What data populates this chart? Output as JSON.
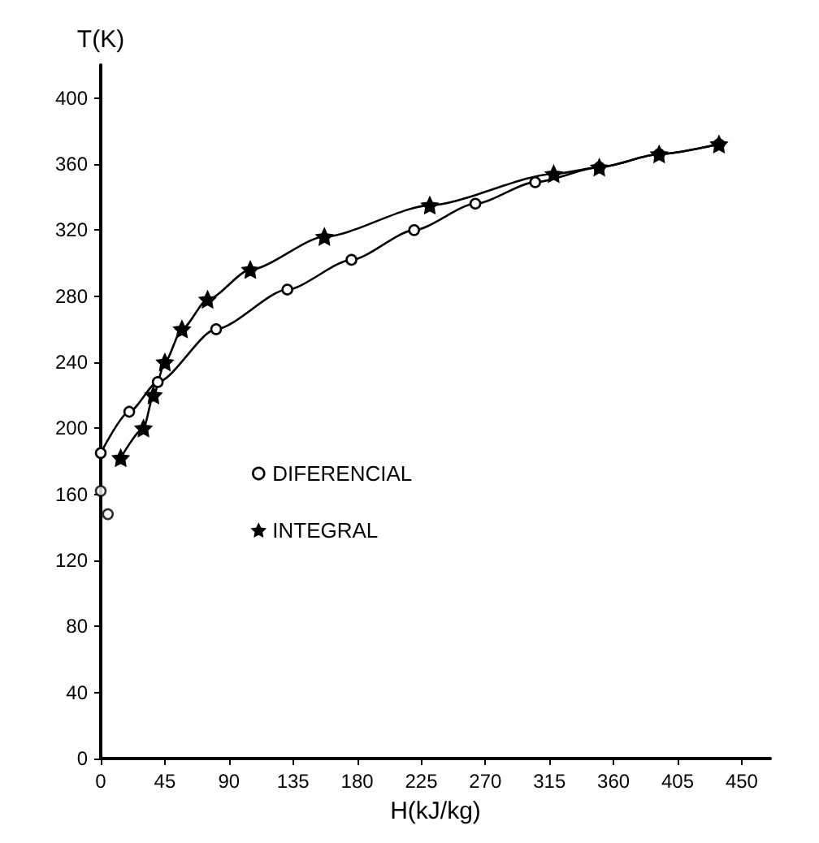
{
  "chart_data": {
    "type": "line",
    "xlabel": "H(kJ/kg)",
    "ylabel": "T(K)",
    "xlim": [
      0,
      470
    ],
    "ylim": [
      0,
      420
    ],
    "xticks": [
      0,
      45,
      90,
      135,
      180,
      225,
      270,
      315,
      360,
      405,
      450
    ],
    "yticks": [
      0,
      40,
      80,
      120,
      160,
      200,
      240,
      280,
      320,
      360,
      400
    ],
    "grid": false,
    "legend": "left",
    "series": [
      {
        "name": "DIFERENCIAL",
        "color": "#000000",
        "marker": "circle",
        "x": [
          0,
          20,
          40,
          81,
          131,
          176,
          220,
          263,
          305,
          350,
          392,
          434
        ],
        "values": [
          185,
          210,
          228,
          260,
          284,
          302,
          320,
          336,
          349,
          358,
          366,
          372
        ]
      },
      {
        "name": "INTEGRAL",
        "color": "#000000",
        "marker": "star",
        "x": [
          14,
          30,
          37,
          45,
          57,
          75,
          105,
          157,
          231,
          318,
          350,
          392,
          434
        ],
        "values": [
          182,
          200,
          220,
          240,
          260,
          278,
          296,
          316,
          335,
          354,
          358,
          366,
          372
        ]
      },
      {
        "type": "scatter",
        "color": "#000000",
        "marker": "circle",
        "x": [
          0,
          5
        ],
        "values": [
          162,
          148
        ]
      }
    ]
  }
}
